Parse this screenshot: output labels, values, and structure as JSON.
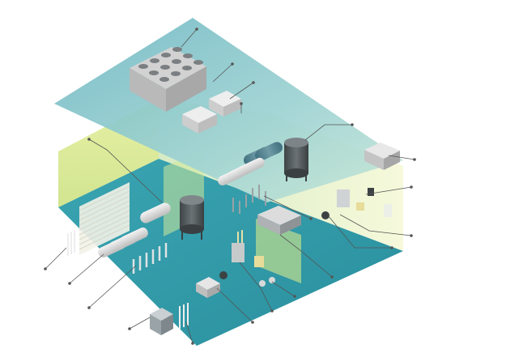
{
  "scene": {
    "colors": {
      "background": "#ffffff",
      "roof": "#8ccbd0",
      "floor": "#2e9aa8",
      "wall_green": "#d9ea7a",
      "wall_light": "#eef4c0",
      "glass": "#b9e3dc",
      "equipment_light": "#dcdcdc",
      "equipment_dark": "#5f6466",
      "callout_line": "#555555"
    },
    "callout_count": 18
  }
}
